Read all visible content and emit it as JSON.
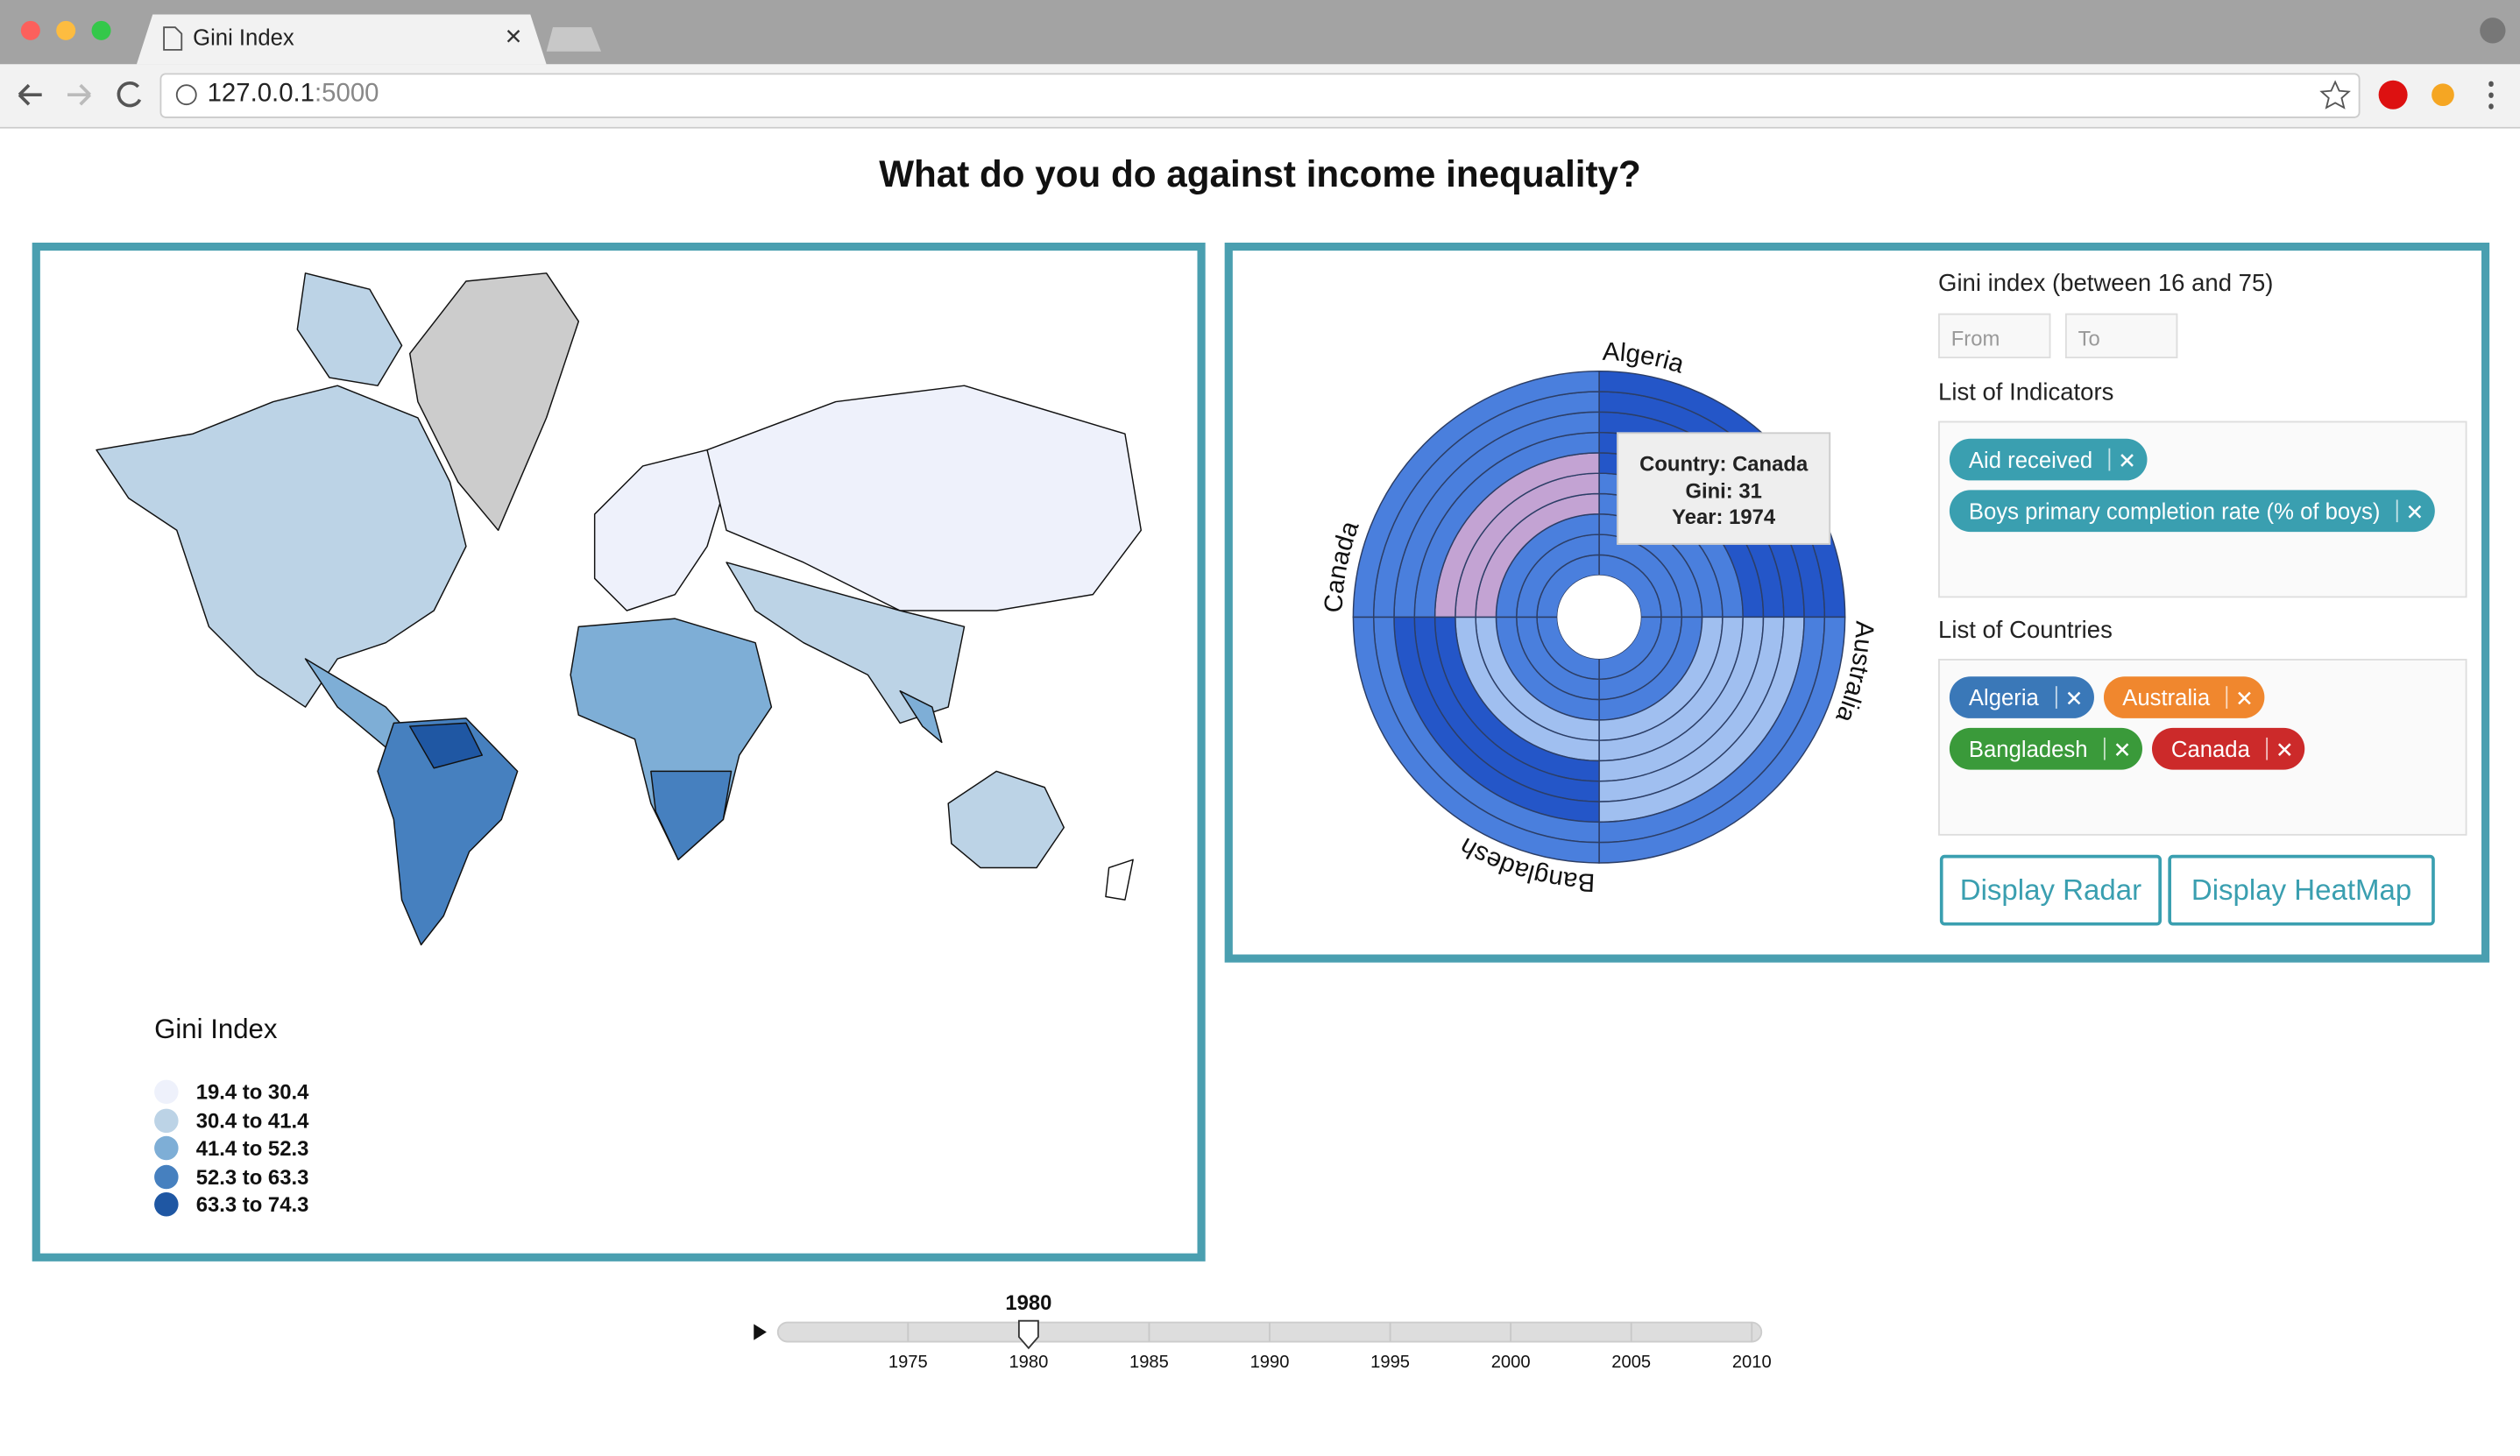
{
  "browser": {
    "tab_title": "Gini Index",
    "url_host": "127.0.0.1",
    "url_port": ":5000"
  },
  "page": {
    "title": "What do you do against income inequality?"
  },
  "map": {
    "legend_title": "Gini Index",
    "legend": [
      {
        "label": "19.4 to 30.4",
        "color": "#eef1fb"
      },
      {
        "label": "30.4 to 41.4",
        "color": "#bcd3e6"
      },
      {
        "label": "41.4 to 52.3",
        "color": "#7eaed6"
      },
      {
        "label": "52.3 to 63.3",
        "color": "#4680bf"
      },
      {
        "label": "63.3 to 74.3",
        "color": "#1f57a3"
      }
    ]
  },
  "radial": {
    "labels": [
      "Algeria",
      "Australia",
      "Bangladesh",
      "Canada"
    ],
    "tooltip": [
      "Country: Canada",
      "Gini: 31",
      "Year: 1974"
    ]
  },
  "filters": {
    "gini_label": "Gini index (between 16 and 75)",
    "from": "From",
    "to": "To",
    "indicators_label": "List of Indicators",
    "indicators": [
      "Aid received",
      "Boys primary completion rate (% of boys)"
    ],
    "countries_label": "List of Countries",
    "countries": [
      {
        "name": "Algeria",
        "color": "#3a78b8"
      },
      {
        "name": "Australia",
        "color": "#f0872e"
      },
      {
        "name": "Bangladesh",
        "color": "#3a9a3a"
      },
      {
        "name": "Canada",
        "color": "#cc2a2a"
      }
    ],
    "buttons": [
      "Display Radar",
      "Display HeatMap"
    ]
  },
  "slider": {
    "value": 1980,
    "range": [
      1970,
      2010
    ],
    "ticks": [
      1975,
      1980,
      1985,
      1990,
      1995,
      2000,
      2005,
      2010
    ]
  }
}
